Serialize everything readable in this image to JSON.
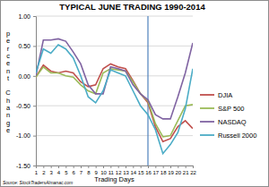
{
  "chart_data": {
    "type": "line",
    "title": "TYPICAL JUNE TRADING 1990-2014",
    "xlabel": "Trading Days",
    "ylabel": "percent Change",
    "source": "Source: StockTradersAlmanac.com",
    "x": [
      1,
      2,
      3,
      4,
      5,
      6,
      7,
      8,
      9,
      10,
      11,
      12,
      13,
      14,
      15,
      16,
      17,
      18,
      19,
      20,
      21,
      22
    ],
    "xlim": [
      1,
      22
    ],
    "xticks": [
      1,
      2,
      3,
      4,
      5,
      6,
      7,
      8,
      9,
      10,
      11,
      12,
      13,
      14,
      15,
      16,
      17,
      18,
      19,
      20,
      21,
      22
    ],
    "ylim": [
      -1.5,
      1
    ],
    "yticks": [
      {
        "value": -1.5,
        "label": "-1.50"
      },
      {
        "value": -1,
        "label": "-1.00"
      },
      {
        "value": -0.5,
        "label": "-0.50"
      },
      {
        "value": 0,
        "label": "0.00"
      },
      {
        "value": 0.5,
        "label": "0.50"
      },
      {
        "value": 1,
        "label": "1.00"
      }
    ],
    "grid": true,
    "legend": "right",
    "reference_lines": [
      {
        "x": 16,
        "color": "#4f81bd"
      }
    ],
    "series": [
      {
        "name": "DJIA",
        "color": "#c0504d",
        "values": [
          -0.02,
          0.18,
          0.08,
          0.05,
          0.08,
          0.05,
          -0.1,
          -0.18,
          -0.15,
          0.12,
          0.2,
          0.15,
          0.12,
          -0.08,
          -0.3,
          -0.45,
          -0.85,
          -1.1,
          -1.05,
          -0.85,
          -0.75,
          -0.88
        ]
      },
      {
        "name": "S&P 500",
        "color": "#9bbb59",
        "values": [
          -0.02,
          0.15,
          0.05,
          0.05,
          0.0,
          -0.02,
          -0.15,
          -0.25,
          -0.3,
          0.05,
          0.12,
          0.1,
          0.08,
          -0.1,
          -0.3,
          -0.42,
          -0.8,
          -1.02,
          -1.0,
          -0.75,
          -0.5,
          -0.48
        ]
      },
      {
        "name": "NASDAQ",
        "color": "#8064a2",
        "values": [
          0.0,
          0.6,
          0.6,
          0.62,
          0.58,
          0.4,
          0.2,
          -0.15,
          -0.3,
          -0.3,
          0.15,
          0.12,
          0.08,
          -0.15,
          -0.3,
          -0.4,
          -0.65,
          -0.72,
          -0.72,
          -0.35,
          0.05,
          0.55
        ]
      },
      {
        "name": "Russell 2000",
        "color": "#4bacc6",
        "values": [
          0.05,
          0.45,
          0.38,
          0.52,
          0.45,
          0.3,
          0.0,
          -0.35,
          -0.45,
          -0.25,
          0.1,
          0.05,
          0.0,
          -0.25,
          -0.5,
          -0.65,
          -0.9,
          -1.3,
          -1.15,
          -0.95,
          -0.55,
          0.12
        ]
      }
    ]
  }
}
